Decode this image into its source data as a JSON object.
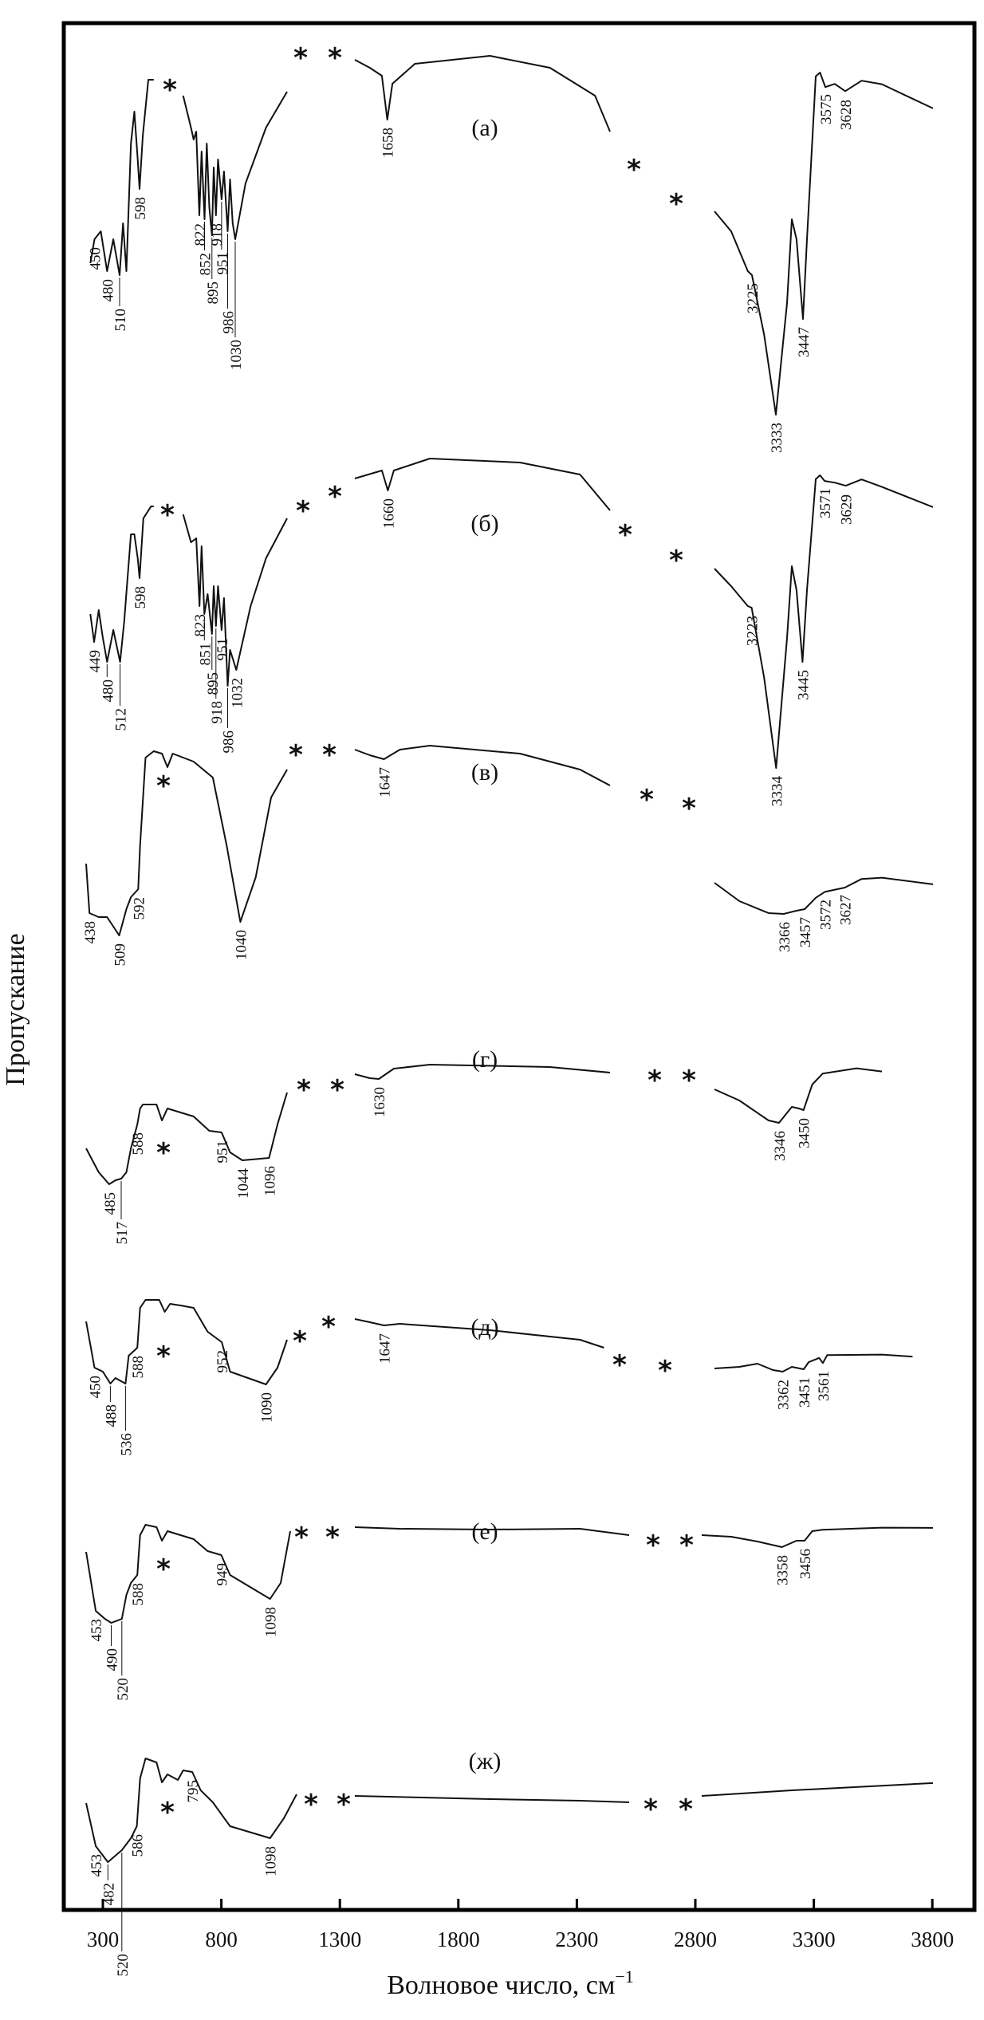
{
  "chart_data": {
    "type": "line",
    "xlabel": "Волновое число, см",
    "xlabel_superscript": "−1",
    "ylabel": "Пропускание",
    "xticks": [
      300,
      800,
      1300,
      1800,
      2300,
      2800,
      3300,
      3800
    ],
    "gap_marker": "*",
    "grid": false,
    "series": [
      {
        "name": "(а)",
        "peaks": [
          450,
          480,
          510,
          598,
          822,
          852,
          895,
          918,
          951,
          986,
          1030,
          1658,
          3225,
          3333,
          3447,
          3575,
          3628
        ]
      },
      {
        "name": "(б)",
        "peaks": [
          449,
          480,
          512,
          598,
          823,
          851,
          895,
          918,
          951,
          986,
          1032,
          1660,
          3223,
          3334,
          3445,
          3571,
          3629
        ]
      },
      {
        "name": "(в)",
        "peaks": [
          438,
          509,
          592,
          1040,
          1647,
          3366,
          3457,
          3572,
          3627
        ]
      },
      {
        "name": "(г)",
        "peaks": [
          485,
          517,
          588,
          951,
          1044,
          1096,
          1630,
          3346,
          3450
        ]
      },
      {
        "name": "(д)",
        "peaks": [
          450,
          488,
          536,
          588,
          952,
          1090,
          1647,
          3362,
          3451,
          3561
        ]
      },
      {
        "name": "(е)",
        "peaks": [
          453,
          490,
          520,
          588,
          949,
          1098,
          3358,
          3456
        ]
      },
      {
        "name": "(ж)",
        "peaks": [
          453,
          482,
          520,
          586,
          795,
          1098
        ]
      }
    ]
  }
}
